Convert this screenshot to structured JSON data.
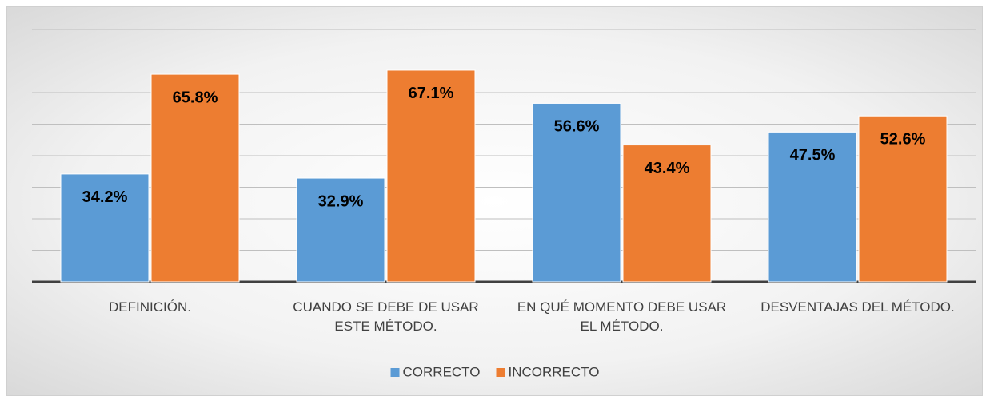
{
  "chart_data": {
    "type": "bar",
    "categories": [
      "DEFINICIÓN.",
      "CUANDO SE DEBE DE USAR ESTE MÉTODO.",
      "EN QUÉ MOMENTO DEBE USAR EL MÉTODO.",
      "DESVENTAJAS DEL MÉTODO."
    ],
    "series": [
      {
        "name": "CORRECTO",
        "color": "#5b9bd5",
        "values": [
          34.2,
          32.9,
          56.6,
          47.5
        ],
        "value_labels": [
          "34.2%",
          "32.9%",
          "56.6%",
          "47.5%"
        ]
      },
      {
        "name": "INCORRECTO",
        "color": "#ed7d31",
        "values": [
          65.8,
          67.1,
          43.4,
          52.6
        ],
        "value_labels": [
          "65.8%",
          "67.1%",
          "43.4%",
          "52.6%"
        ]
      }
    ],
    "ylim": [
      0,
      80
    ],
    "yticks": [
      0,
      10,
      20,
      30,
      40,
      50,
      60,
      70,
      80
    ],
    "grid": true,
    "legend": "bottom"
  }
}
